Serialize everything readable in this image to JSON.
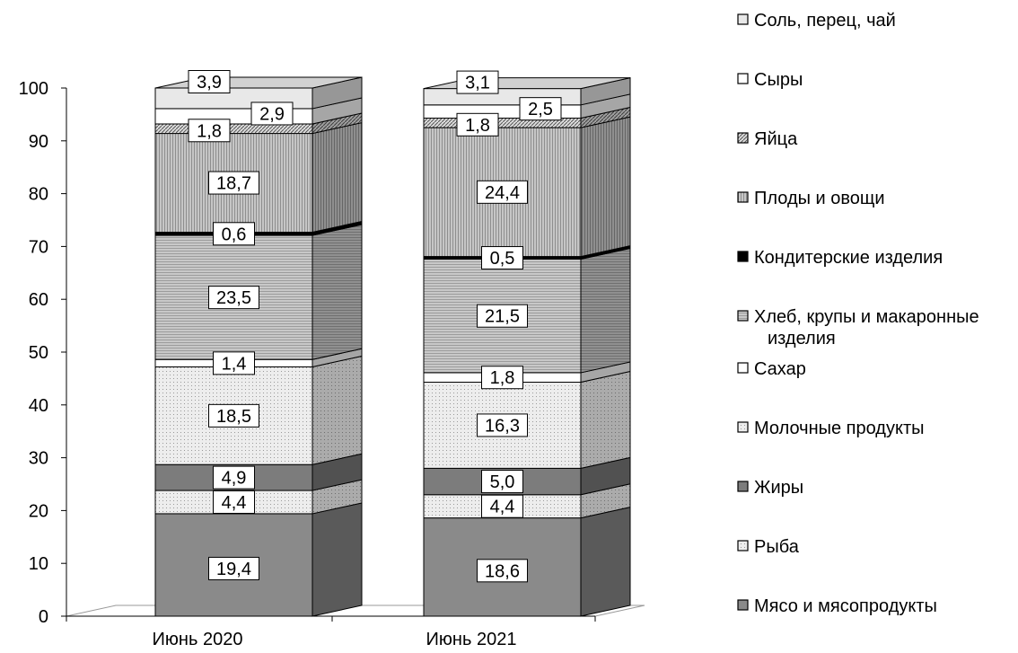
{
  "chart_data": {
    "type": "bar",
    "stacked": true,
    "three_d": true,
    "categories": [
      "Июнь 2020",
      "Июнь 2021"
    ],
    "y_ticks": [
      "0",
      "10",
      "20",
      "30",
      "40",
      "50",
      "60",
      "70",
      "80",
      "90",
      "100"
    ],
    "ylim": [
      0,
      100
    ],
    "legend_position": "right",
    "series": [
      {
        "name": "Мясо и мясопродукты",
        "values": [
          19.4,
          18.6
        ],
        "labels": [
          "19,4",
          "18,6"
        ],
        "fill": "#8a8a8a",
        "pattern": "solid"
      },
      {
        "name": "Рыба",
        "values": [
          4.4,
          4.4
        ],
        "labels": [
          "4,4",
          "4,4"
        ],
        "fill": "#e4e4e4",
        "pattern": "dots"
      },
      {
        "name": "Жиры",
        "values": [
          4.9,
          5.0
        ],
        "labels": [
          "4,9",
          "5,0"
        ],
        "fill": "#7c7c7c",
        "pattern": "solid"
      },
      {
        "name": "Молочные продукты",
        "values": [
          18.5,
          16.3
        ],
        "labels": [
          "18,5",
          "16,3"
        ],
        "fill": "#f1f1f1",
        "pattern": "dots"
      },
      {
        "name": "Сахар",
        "values": [
          1.4,
          1.8
        ],
        "labels": [
          "1,4",
          "1,8"
        ],
        "fill": "#ffffff",
        "pattern": "solid"
      },
      {
        "name": "Хлеб, крупы и макаронные изделия",
        "values": [
          23.5,
          21.5
        ],
        "labels": [
          "23,5",
          "21,5"
        ],
        "fill": "#bdbdbd",
        "pattern": "hlines"
      },
      {
        "name": "Кондитерские изделия",
        "values": [
          0.6,
          0.5
        ],
        "labels": [
          "0,6",
          "0,5"
        ],
        "fill": "#000000",
        "pattern": "solid"
      },
      {
        "name": "Плоды и овощи",
        "values": [
          18.7,
          24.4
        ],
        "labels": [
          "18,7",
          "24,4"
        ],
        "fill": "#bababa",
        "pattern": "vlines"
      },
      {
        "name": "Яйца",
        "values": [
          1.8,
          1.8
        ],
        "labels": [
          "1,8",
          "1,8"
        ],
        "fill": "#8f8f8f",
        "pattern": "diag"
      },
      {
        "name": "Сыры",
        "values": [
          2.9,
          2.5
        ],
        "labels": [
          "2,9",
          "2,5"
        ],
        "fill": "#ffffff",
        "pattern": "solid"
      },
      {
        "name": "Соль, перец, чай",
        "values": [
          3.9,
          3.1
        ],
        "labels": [
          "3,9",
          "3,1"
        ],
        "fill": "#e8e8e8",
        "pattern": "solid"
      }
    ],
    "legend_lines": [
      {
        "series": 10,
        "lines": [
          "Соль, перец, чай"
        ]
      },
      {
        "series": 9,
        "lines": [
          "Сыры"
        ]
      },
      {
        "series": 8,
        "lines": [
          "Яйца"
        ]
      },
      {
        "series": 7,
        "lines": [
          "Плоды и овощи"
        ]
      },
      {
        "series": 6,
        "lines": [
          "Кондитерские изделия"
        ]
      },
      {
        "series": 5,
        "lines": [
          "Хлеб, крупы и макаронные",
          "изделия"
        ]
      },
      {
        "series": 4,
        "lines": [
          "Сахар"
        ]
      },
      {
        "series": 3,
        "lines": [
          "Молочные продукты"
        ]
      },
      {
        "series": 2,
        "lines": [
          "Жиры"
        ]
      },
      {
        "series": 1,
        "lines": [
          "Рыба"
        ]
      },
      {
        "series": 0,
        "lines": [
          "Мясо и мясопродукты"
        ]
      }
    ],
    "label_placement": [
      [
        "c",
        "c",
        "c",
        "c",
        "c",
        "c",
        "c",
        "c",
        "c",
        "r",
        "c"
      ],
      [
        "c",
        "c",
        "c",
        "c",
        "c",
        "c",
        "c",
        "c",
        "c",
        "r",
        "c"
      ]
    ]
  }
}
